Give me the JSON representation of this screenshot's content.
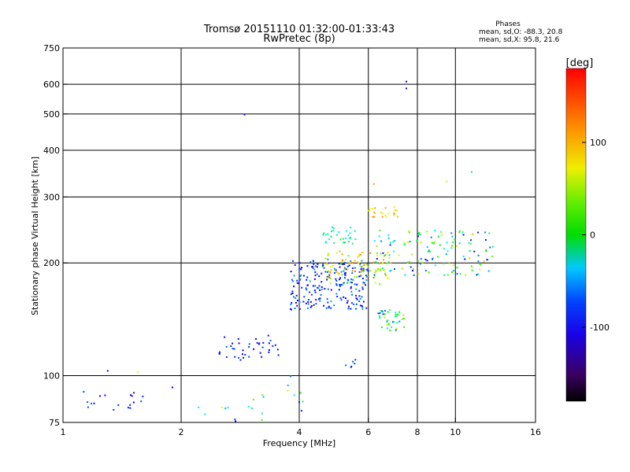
{
  "header": {
    "title_line1": "Tromsø 20151110 01:32:00-01:33:43",
    "title_line2": "RwPretec (8p)"
  },
  "stats": {
    "heading": "Phases",
    "line1": "mean, sd,O: -88.3, 20.8",
    "line2": "mean, sd,X: 95.8, 21.6"
  },
  "colorbar": {
    "unit_label": "[deg]",
    "ticks": [
      {
        "value": 100,
        "label": "100"
      },
      {
        "value": 0,
        "label": "0"
      },
      {
        "value": -100,
        "label": "-100"
      }
    ],
    "range": [
      -180,
      180
    ]
  },
  "chart_data": {
    "type": "scatter",
    "title": "Tromsø 20151110 01:32:00-01:33:43",
    "subtitle": "RwPretec (8p)",
    "xlabel": "Frequency [MHz]",
    "ylabel": "Stationary phase Virtual Height [km]",
    "xscale": "log",
    "yscale": "log",
    "xlim": [
      1,
      16
    ],
    "ylim": [
      75,
      750
    ],
    "xticks": [
      {
        "value": 1,
        "label": "1"
      },
      {
        "value": 2,
        "label": "2"
      },
      {
        "value": 4,
        "label": "4"
      },
      {
        "value": 6,
        "label": "6"
      },
      {
        "value": 8,
        "label": "8"
      },
      {
        "value": 10,
        "label": "10"
      },
      {
        "value": 16,
        "label": "16"
      }
    ],
    "yticks": [
      {
        "value": 75,
        "label": "75"
      },
      {
        "value": 100,
        "label": "100"
      },
      {
        "value": 200,
        "label": "200"
      },
      {
        "value": 300,
        "label": "300"
      },
      {
        "value": 400,
        "label": "400"
      },
      {
        "value": 500,
        "label": "500"
      },
      {
        "value": 600,
        "label": "600"
      },
      {
        "value": 750,
        "label": "750"
      }
    ],
    "grid": true,
    "color_variable": "phase [deg]",
    "clusters": [
      {
        "x": [
          1.05,
          1.6
        ],
        "y": [
          80,
          92
        ],
        "n": 18,
        "phase": [
          -140,
          -70
        ]
      },
      {
        "x": [
          2.5,
          3.6
        ],
        "y": [
          110,
          128
        ],
        "n": 40,
        "phase": [
          -130,
          -80
        ]
      },
      {
        "x": [
          3.6,
          4.2
        ],
        "y": [
          80,
          100
        ],
        "n": 8,
        "phase": [
          -130,
          120
        ]
      },
      {
        "x": [
          3.8,
          6.0
        ],
        "y": [
          150,
          205
        ],
        "n": 220,
        "phase": [
          -130,
          -60
        ]
      },
      {
        "x": [
          4.6,
          6.8
        ],
        "y": [
          175,
          215
        ],
        "n": 90,
        "phase": [
          60,
          150
        ]
      },
      {
        "x": [
          4.6,
          5.6
        ],
        "y": [
          225,
          250
        ],
        "n": 30,
        "phase": [
          -40,
          20
        ]
      },
      {
        "x": [
          6.0,
          7.2
        ],
        "y": [
          265,
          282
        ],
        "n": 25,
        "phase": [
          100,
          140
        ]
      },
      {
        "x": [
          6.3,
          7.4
        ],
        "y": [
          132,
          150
        ],
        "n": 40,
        "phase": [
          -100,
          90
        ]
      },
      {
        "x": [
          6.2,
          12.5
        ],
        "y": [
          185,
          245
        ],
        "n": 140,
        "phase": [
          -120,
          130
        ]
      },
      {
        "x": [
          5.2,
          5.6
        ],
        "y": [
          104,
          112
        ],
        "n": 6,
        "phase": [
          -110,
          -70
        ]
      },
      {
        "x": [
          2.2,
          3.4
        ],
        "y": [
          75,
          90
        ],
        "n": 15,
        "phase": [
          -110,
          110
        ]
      }
    ],
    "singles": [
      {
        "x": 7.5,
        "y": 610,
        "phase": -110
      },
      {
        "x": 7.5,
        "y": 585,
        "phase": -120
      },
      {
        "x": 2.9,
        "y": 498,
        "phase": -110
      },
      {
        "x": 11.0,
        "y": 350,
        "phase": 0
      },
      {
        "x": 9.5,
        "y": 330,
        "phase": 100
      },
      {
        "x": 6.2,
        "y": 325,
        "phase": 130
      },
      {
        "x": 1.3,
        "y": 103,
        "phase": -120
      },
      {
        "x": 1.55,
        "y": 102,
        "phase": 100
      },
      {
        "x": 1.9,
        "y": 93,
        "phase": -110
      }
    ]
  }
}
